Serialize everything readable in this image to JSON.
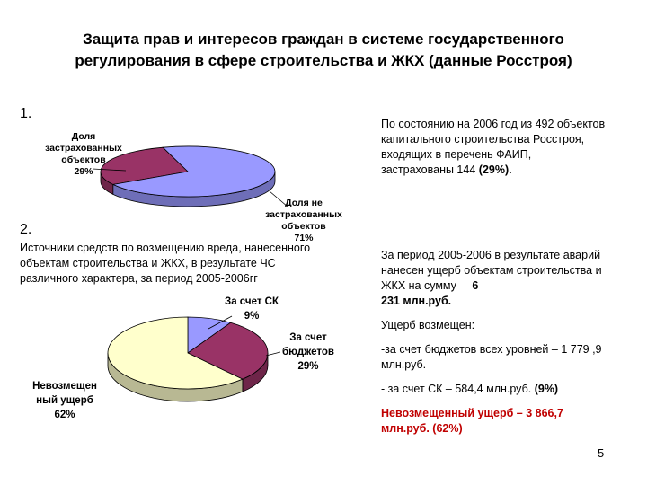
{
  "title_line1": "Защита прав и интересов граждан в системе государственного",
  "title_line2": "регулирования в сфере строительства и ЖКХ (данные Росстроя)",
  "section1": {
    "number": "1.",
    "text": "По состоянию на 2006 год из 492 объектов капитального строительства Росстроя, входящих в перечень ФАИП, застрахованы 144",
    "highlight": "(29%)."
  },
  "section2": {
    "number": "2.",
    "left_text": "Источники средств по возмещению вреда, нанесенного объектам строительства и ЖКХ, в результате ЧС различного характера, за период 2005-2006гг",
    "damage_text": "За период 2005-2006 в результате аварий нанесен ущерб объектам строительства и ЖКХ на сумму",
    "damage_amount_digit": "6",
    "damage_amount_rest": "231 млн.руб.",
    "compensated": "Ущерб возмещен:",
    "budget_text": "-за счет бюджетов всех уровней – 1 779 ,9 млн.руб.",
    "sk_text": "- за счет СК – 584,4 млн.руб.",
    "sk_percent": "(9%)",
    "uncompensated": "Невозмещенный ущерб – 3 866,7 млн.руб. (62%)"
  },
  "page_number": "5",
  "chart_data": [
    {
      "type": "pie",
      "style": "3d",
      "slices": [
        {
          "label_line1": "Доля",
          "label_line2": "застрахованных",
          "label_line3": "объектов",
          "percent_label": "29%",
          "value": 29,
          "color": "#993366"
        },
        {
          "label_line1": "Доля не",
          "label_line2": "застрахованных",
          "label_line3": "объектов",
          "percent_label": "71%",
          "value": 71,
          "color": "#9999ff"
        }
      ]
    },
    {
      "type": "pie",
      "style": "3d",
      "slices": [
        {
          "label_line1": "За счет СК",
          "label_line2": "",
          "percent_label": "9%",
          "value": 9,
          "color": "#9999ff"
        },
        {
          "label_line1": "За счет",
          "label_line2": "бюджетов",
          "percent_label": "29%",
          "value": 29,
          "color": "#993366"
        },
        {
          "label_line1": "Невозмещен",
          "label_line2": "ный ущерб",
          "percent_label": "62%",
          "value": 62,
          "color": "#ffffcc"
        }
      ]
    }
  ]
}
